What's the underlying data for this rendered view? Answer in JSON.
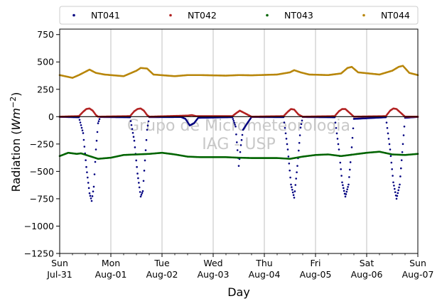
{
  "chart_data": {
    "type": "scatter",
    "xlabel": "Day",
    "ylabel": "Radiation",
    "ylabel_unit": "Wm",
    "ylabel_exp": "−2",
    "ylim": [
      -1250,
      800
    ],
    "xlim": [
      "2022-07-31",
      "2022-08-07"
    ],
    "yticks": [
      -1250,
      -1000,
      -750,
      -500,
      -250,
      0,
      250,
      500,
      750
    ],
    "ytick_labels": [
      "−1250",
      "−1000",
      "−750",
      "−500",
      "−250",
      "0",
      "250",
      "500",
      "750"
    ],
    "xticks": [
      {
        "date": "2022-07-31",
        "day": "Sun",
        "label": "Jul-31"
      },
      {
        "date": "2022-08-01",
        "day": "Mon",
        "label": "Aug-01"
      },
      {
        "date": "2022-08-02",
        "day": "Tue",
        "label": "Aug-02"
      },
      {
        "date": "2022-08-03",
        "day": "Wed",
        "label": "Aug-03"
      },
      {
        "date": "2022-08-04",
        "day": "Thu",
        "label": "Aug-04"
      },
      {
        "date": "2022-08-05",
        "day": "Fri",
        "label": "Aug-05"
      },
      {
        "date": "2022-08-06",
        "day": "Sat",
        "label": "Aug-06"
      },
      {
        "date": "2022-08-07",
        "day": "Sun",
        "label": "Aug-07"
      }
    ],
    "grid": "vertical",
    "legend": "top",
    "watermark": [
      "Grupo de Micrometeorologia",
      "IAG - USP"
    ],
    "series": [
      {
        "name": "NT041",
        "color": "#000080",
        "description": "negative daytime radiation",
        "points": [
          [
            "2022-07-31 00:00",
            -2
          ],
          [
            "2022-07-31 09:00",
            -5
          ],
          [
            "2022-07-31 11:00",
            -150
          ],
          [
            "2022-07-31 12:30",
            -460
          ],
          [
            "2022-07-31 14:00",
            -700
          ],
          [
            "2022-07-31 15:00",
            -770
          ],
          [
            "2022-07-31 16:00",
            -640
          ],
          [
            "2022-07-31 17:00",
            -300
          ],
          [
            "2022-07-31 18:00",
            -60
          ],
          [
            "2022-07-31 19:00",
            -3
          ],
          [
            "2022-08-01 09:00",
            -5
          ],
          [
            "2022-08-01 11:00",
            -220
          ],
          [
            "2022-08-01 12:30",
            -520
          ],
          [
            "2022-08-01 14:00",
            -730
          ],
          [
            "2022-08-01 15:00",
            -680
          ],
          [
            "2022-08-01 16:00",
            -400
          ],
          [
            "2022-08-01 17:00",
            -120
          ],
          [
            "2022-08-01 18:00",
            -4
          ],
          [
            "2022-08-02 09:00",
            -3
          ],
          [
            "2022-08-02 11:00",
            -20
          ],
          [
            "2022-08-02 13:00",
            -80
          ],
          [
            "2022-08-02 15:00",
            -60
          ],
          [
            "2022-08-02 17:00",
            -10
          ],
          [
            "2022-08-03 09:00",
            -4
          ],
          [
            "2022-08-03 10:30",
            -90
          ],
          [
            "2022-08-03 12:00",
            -450
          ],
          [
            "2022-08-03 13:00",
            -260
          ],
          [
            "2022-08-03 14:00",
            -120
          ],
          [
            "2022-08-03 16:00",
            -60
          ],
          [
            "2022-08-03 18:00",
            -3
          ],
          [
            "2022-08-04 09:00",
            -4
          ],
          [
            "2022-08-04 11:00",
            -300
          ],
          [
            "2022-08-04 12:30",
            -620
          ],
          [
            "2022-08-04 14:00",
            -740
          ],
          [
            "2022-08-04 15:30",
            -450
          ],
          [
            "2022-08-04 17:00",
            -100
          ],
          [
            "2022-08-04 18:00",
            -3
          ],
          [
            "2022-08-05 09:00",
            -5
          ],
          [
            "2022-08-05 11:00",
            -300
          ],
          [
            "2022-08-05 12:30",
            -600
          ],
          [
            "2022-08-05 14:00",
            -730
          ],
          [
            "2022-08-05 15:30",
            -620
          ],
          [
            "2022-08-05 17:00",
            -280
          ],
          [
            "2022-08-05 18:00",
            -20
          ],
          [
            "2022-08-06 09:00",
            -5
          ],
          [
            "2022-08-06 11:00",
            -300
          ],
          [
            "2022-08-06 12:30",
            -600
          ],
          [
            "2022-08-06 14:00",
            -750
          ],
          [
            "2022-08-06 15:30",
            -620
          ],
          [
            "2022-08-06 17:00",
            -250
          ],
          [
            "2022-08-06 18:00",
            -10
          ],
          [
            "2022-08-07 00:00",
            -2
          ]
        ]
      },
      {
        "name": "NT042",
        "color": "#b22222",
        "description": "small positive daytime radiation",
        "points": [
          [
            "2022-07-31 00:00",
            0
          ],
          [
            "2022-07-31 09:00",
            5
          ],
          [
            "2022-07-31 11:00",
            45
          ],
          [
            "2022-07-31 12:30",
            70
          ],
          [
            "2022-07-31 14:00",
            75
          ],
          [
            "2022-07-31 15:30",
            55
          ],
          [
            "2022-07-31 17:00",
            15
          ],
          [
            "2022-07-31 18:00",
            0
          ],
          [
            "2022-08-01 09:00",
            5
          ],
          [
            "2022-08-01 11:00",
            50
          ],
          [
            "2022-08-01 12:30",
            70
          ],
          [
            "2022-08-01 14:00",
            75
          ],
          [
            "2022-08-01 15:30",
            55
          ],
          [
            "2022-08-01 17:00",
            15
          ],
          [
            "2022-08-01 18:00",
            0
          ],
          [
            "2022-08-02 12:00",
            10
          ],
          [
            "2022-08-02 14:00",
            15
          ],
          [
            "2022-08-02 16:00",
            5
          ],
          [
            "2022-08-03 09:00",
            5
          ],
          [
            "2022-08-03 11:00",
            35
          ],
          [
            "2022-08-03 12:30",
            55
          ],
          [
            "2022-08-03 14:00",
            40
          ],
          [
            "2022-08-03 16:00",
            20
          ],
          [
            "2022-08-03 18:00",
            0
          ],
          [
            "2022-08-04 09:00",
            5
          ],
          [
            "2022-08-04 11:00",
            45
          ],
          [
            "2022-08-04 12:30",
            70
          ],
          [
            "2022-08-04 14:00",
            65
          ],
          [
            "2022-08-04 16:00",
            20
          ],
          [
            "2022-08-04 18:00",
            0
          ],
          [
            "2022-08-05 09:00",
            5
          ],
          [
            "2022-08-05 11:00",
            50
          ],
          [
            "2022-08-05 12:30",
            70
          ],
          [
            "2022-08-05 14:00",
            70
          ],
          [
            "2022-08-05 16:00",
            35
          ],
          [
            "2022-08-05 18:00",
            0
          ],
          [
            "2022-08-06 09:00",
            5
          ],
          [
            "2022-08-06 11:00",
            55
          ],
          [
            "2022-08-06 12:30",
            75
          ],
          [
            "2022-08-06 14:00",
            70
          ],
          [
            "2022-08-06 16:00",
            35
          ],
          [
            "2022-08-06 18:00",
            0
          ],
          [
            "2022-08-07 00:00",
            0
          ]
        ]
      },
      {
        "name": "NT043",
        "color": "#006400",
        "description": "negative near-constant radiation",
        "points": [
          [
            "2022-07-31 00:00",
            -360
          ],
          [
            "2022-07-31 04:00",
            -330
          ],
          [
            "2022-07-31 08:00",
            -340
          ],
          [
            "2022-07-31 10:00",
            -335
          ],
          [
            "2022-07-31 14:00",
            -360
          ],
          [
            "2022-07-31 18:00",
            -385
          ],
          [
            "2022-08-01 00:00",
            -375
          ],
          [
            "2022-08-01 06:00",
            -350
          ],
          [
            "2022-08-01 12:00",
            -345
          ],
          [
            "2022-08-01 18:00",
            -340
          ],
          [
            "2022-08-02 00:00",
            -330
          ],
          [
            "2022-08-02 06:00",
            -345
          ],
          [
            "2022-08-02 12:00",
            -365
          ],
          [
            "2022-08-02 18:00",
            -370
          ],
          [
            "2022-08-03 00:00",
            -370
          ],
          [
            "2022-08-03 06:00",
            -370
          ],
          [
            "2022-08-03 12:00",
            -375
          ],
          [
            "2022-08-03 18:00",
            -378
          ],
          [
            "2022-08-04 00:00",
            -378
          ],
          [
            "2022-08-04 06:00",
            -378
          ],
          [
            "2022-08-04 12:00",
            -385
          ],
          [
            "2022-08-04 18:00",
            -365
          ],
          [
            "2022-08-05 00:00",
            -350
          ],
          [
            "2022-08-05 06:00",
            -345
          ],
          [
            "2022-08-05 12:00",
            -360
          ],
          [
            "2022-08-05 18:00",
            -345
          ],
          [
            "2022-08-06 00:00",
            -330
          ],
          [
            "2022-08-06 06:00",
            -320
          ],
          [
            "2022-08-06 12:00",
            -345
          ],
          [
            "2022-08-06 18:00",
            -350
          ],
          [
            "2022-08-07 00:00",
            -340
          ]
        ]
      },
      {
        "name": "NT044",
        "color": "#b8860b",
        "description": "positive radiation with daily peaks",
        "points": [
          [
            "2022-07-31 00:00",
            380
          ],
          [
            "2022-07-31 06:00",
            355
          ],
          [
            "2022-07-31 09:00",
            380
          ],
          [
            "2022-07-31 12:00",
            410
          ],
          [
            "2022-07-31 14:00",
            430
          ],
          [
            "2022-07-31 17:00",
            400
          ],
          [
            "2022-07-31 21:00",
            385
          ],
          [
            "2022-08-01 06:00",
            370
          ],
          [
            "2022-08-01 09:00",
            395
          ],
          [
            "2022-08-01 12:00",
            420
          ],
          [
            "2022-08-01 14:00",
            445
          ],
          [
            "2022-08-01 17:00",
            440
          ],
          [
            "2022-08-01 20:00",
            385
          ],
          [
            "2022-08-02 06:00",
            370
          ],
          [
            "2022-08-02 12:00",
            380
          ],
          [
            "2022-08-02 18:00",
            380
          ],
          [
            "2022-08-03 06:00",
            375
          ],
          [
            "2022-08-03 12:00",
            380
          ],
          [
            "2022-08-03 18:00",
            378
          ],
          [
            "2022-08-04 06:00",
            385
          ],
          [
            "2022-08-04 12:00",
            405
          ],
          [
            "2022-08-04 14:00",
            425
          ],
          [
            "2022-08-04 17:00",
            405
          ],
          [
            "2022-08-04 21:00",
            385
          ],
          [
            "2022-08-05 06:00",
            380
          ],
          [
            "2022-08-05 12:00",
            395
          ],
          [
            "2022-08-05 15:00",
            445
          ],
          [
            "2022-08-05 17:00",
            455
          ],
          [
            "2022-08-05 20:00",
            405
          ],
          [
            "2022-08-06 06:00",
            385
          ],
          [
            "2022-08-06 12:00",
            420
          ],
          [
            "2022-08-06 15:00",
            455
          ],
          [
            "2022-08-06 17:00",
            465
          ],
          [
            "2022-08-06 20:00",
            400
          ],
          [
            "2022-08-07 00:00",
            380
          ]
        ]
      }
    ]
  }
}
